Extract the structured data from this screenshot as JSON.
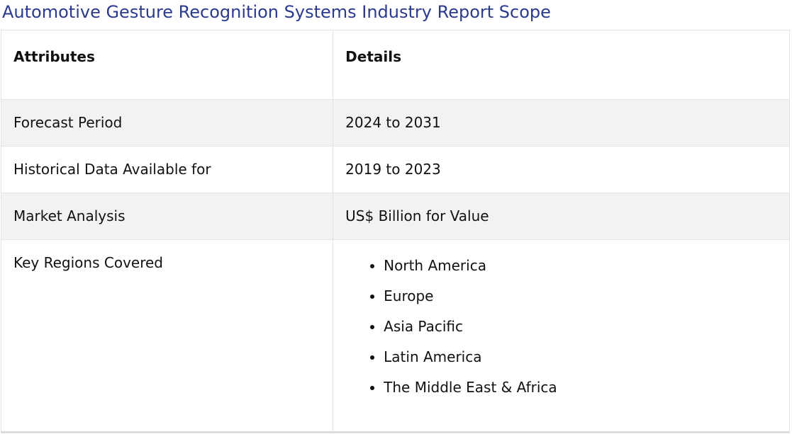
{
  "page": {
    "title": "Automotive Gesture Recognition Systems Industry Report Scope"
  },
  "table": {
    "headers": [
      "Attributes",
      "Details"
    ],
    "rows": [
      {
        "attribute": "Forecast Period",
        "detail": "2024 to 2031"
      },
      {
        "attribute": "Historical Data Available for",
        "detail": "2019 to 2023"
      },
      {
        "attribute": "Market Analysis",
        "detail": "US$ Billion for Value"
      },
      {
        "attribute": "Key Regions Covered",
        "list": [
          "North America",
          "Europe",
          "Asia Pacific",
          "Latin America",
          "The Middle East & Africa"
        ]
      }
    ]
  },
  "colors": {
    "title": "#2b3a8c",
    "shaded_row": "#f2f2f2",
    "border": "#e3e3e3"
  }
}
